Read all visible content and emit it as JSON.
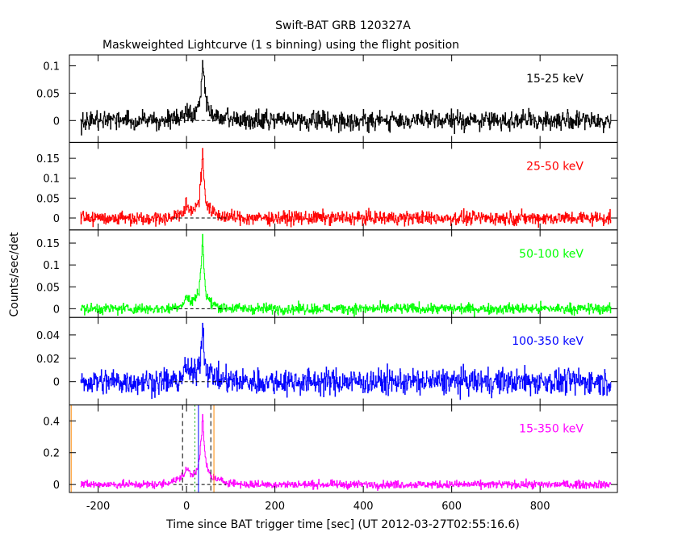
{
  "chart_data": {
    "type": "line",
    "title": "Swift-BAT GRB 120327A",
    "subtitle": "Maskweighted Lightcurve (1 s binning) using the flight position",
    "xlabel": "Time since BAT trigger time [sec] (UT 2012-03-27T02:55:16.6)",
    "ylabel": "Counts/sec/det",
    "xlim": [
      -265,
      975
    ],
    "x_ticks": [
      -200,
      0,
      200,
      400,
      600,
      800
    ],
    "data_x_range": [
      -240,
      960
    ],
    "grid": false,
    "panels": [
      {
        "band": "15-25 keV",
        "color": "#000000",
        "ylim": [
          -0.04,
          0.12
        ],
        "y_ticks": [
          0,
          0.05,
          0.1
        ],
        "y_tick_labels": [
          "0",
          "0.05",
          "0.1"
        ],
        "noise_sigma": 0.0085,
        "peak": {
          "x": 36,
          "y": 0.11
        },
        "emission_points": [
          [
            -240,
            0
          ],
          [
            -40,
            0
          ],
          [
            -10,
            0.008
          ],
          [
            0,
            0.018
          ],
          [
            10,
            0.012
          ],
          [
            20,
            0.016
          ],
          [
            28,
            0.028
          ],
          [
            34,
            0.072
          ],
          [
            36,
            0.11
          ],
          [
            40,
            0.07
          ],
          [
            45,
            0.03
          ],
          [
            55,
            0.012
          ],
          [
            75,
            0.004
          ],
          [
            120,
            0
          ],
          [
            960,
            0
          ]
        ]
      },
      {
        "band": "25-50 keV",
        "color": "#ff0000",
        "ylim": [
          -0.03,
          0.19
        ],
        "y_ticks": [
          0,
          0.05,
          0.1,
          0.15
        ],
        "y_tick_labels": [
          "0",
          "0.05",
          "0.1",
          "0.15"
        ],
        "noise_sigma": 0.0085,
        "peak": {
          "x": 36,
          "y": 0.175
        },
        "emission_points": [
          [
            -240,
            0
          ],
          [
            -40,
            0
          ],
          [
            -10,
            0.012
          ],
          [
            0,
            0.03
          ],
          [
            8,
            0.018
          ],
          [
            18,
            0.026
          ],
          [
            28,
            0.045
          ],
          [
            34,
            0.12
          ],
          [
            36,
            0.175
          ],
          [
            39,
            0.1
          ],
          [
            44,
            0.04
          ],
          [
            55,
            0.016
          ],
          [
            75,
            0.005
          ],
          [
            120,
            0
          ],
          [
            960,
            0
          ]
        ]
      },
      {
        "band": "50-100 keV",
        "color": "#00ff00",
        "ylim": [
          -0.02,
          0.18
        ],
        "y_ticks": [
          0,
          0.05,
          0.1,
          0.15
        ],
        "y_tick_labels": [
          "0",
          "0.05",
          "0.1",
          "0.15"
        ],
        "noise_sigma": 0.006,
        "peak": {
          "x": 36,
          "y": 0.17
        },
        "emission_points": [
          [
            -240,
            0
          ],
          [
            -40,
            0
          ],
          [
            -10,
            0.01
          ],
          [
            0,
            0.028
          ],
          [
            8,
            0.016
          ],
          [
            18,
            0.022
          ],
          [
            28,
            0.04
          ],
          [
            34,
            0.12
          ],
          [
            36,
            0.17
          ],
          [
            39,
            0.09
          ],
          [
            44,
            0.03
          ],
          [
            55,
            0.012
          ],
          [
            75,
            0.004
          ],
          [
            120,
            0
          ],
          [
            960,
            0
          ]
        ]
      },
      {
        "band": "100-350 keV",
        "color": "#0000ff",
        "ylim": [
          -0.02,
          0.055
        ],
        "y_ticks": [
          0,
          0.02,
          0.04
        ],
        "y_tick_labels": [
          "0",
          "0.02",
          "0.04"
        ],
        "noise_sigma": 0.0055,
        "peak": {
          "x": 36,
          "y": 0.05
        },
        "emission_points": [
          [
            -240,
            0
          ],
          [
            -20,
            0
          ],
          [
            0,
            0.012
          ],
          [
            10,
            0.006
          ],
          [
            20,
            0.008
          ],
          [
            30,
            0.018
          ],
          [
            34,
            0.035
          ],
          [
            36,
            0.05
          ],
          [
            40,
            0.02
          ],
          [
            48,
            0.008
          ],
          [
            70,
            0.002
          ],
          [
            120,
            0
          ],
          [
            960,
            0
          ]
        ]
      },
      {
        "band": "15-350 keV",
        "color": "#ff00ff",
        "ylim": [
          -0.05,
          0.5
        ],
        "y_ticks": [
          0,
          0.2,
          0.4
        ],
        "y_tick_labels": [
          "0",
          "0.2",
          "0.4"
        ],
        "noise_sigma": 0.012,
        "peak": {
          "x": 36,
          "y": 0.44
        },
        "emission_points": [
          [
            -240,
            0
          ],
          [
            -60,
            0
          ],
          [
            -20,
            0.03
          ],
          [
            -5,
            0.07
          ],
          [
            2,
            0.1
          ],
          [
            10,
            0.06
          ],
          [
            20,
            0.08
          ],
          [
            28,
            0.14
          ],
          [
            34,
            0.32
          ],
          [
            36,
            0.44
          ],
          [
            39,
            0.28
          ],
          [
            44,
            0.12
          ],
          [
            55,
            0.05
          ],
          [
            80,
            0.02
          ],
          [
            130,
            0
          ],
          [
            960,
            0
          ]
        ],
        "markers": [
          {
            "x": -9,
            "color": "#000000",
            "style": "dashed"
          },
          {
            "x": 19,
            "color": "#00aa00",
            "style": "dotted"
          },
          {
            "x": 27,
            "color": "#0000ff",
            "style": "solid"
          },
          {
            "x": 55,
            "color": "#000000",
            "style": "dashed"
          },
          {
            "x": 62,
            "color": "#ff8800",
            "style": "solid"
          },
          {
            "x": -261,
            "color": "#ff8800",
            "style": "solid"
          }
        ]
      }
    ]
  }
}
